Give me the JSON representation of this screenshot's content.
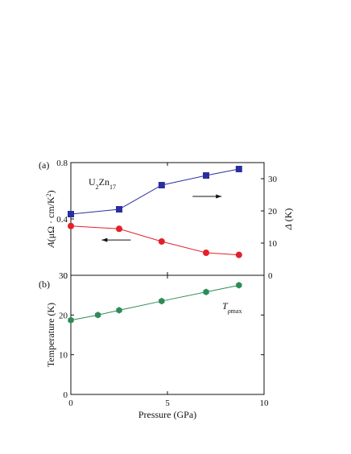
{
  "chart_data": [
    {
      "type": "line",
      "panel_label": "(a)",
      "xlim": [
        0,
        10
      ],
      "left_axis": {
        "label_parts": [
          "A",
          "(μΩ · cm/K",
          "2",
          ")"
        ],
        "ylim": [
          0,
          0.8
        ],
        "ticks": [
          0,
          0.4,
          0.8
        ],
        "tick_labels": [
          "0",
          "0.4",
          "0.8"
        ]
      },
      "right_axis": {
        "label_parts": [
          "Δ",
          " (K)"
        ],
        "ylim": [
          0,
          35
        ],
        "ticks": [
          0,
          10,
          20,
          30
        ],
        "tick_labels": [
          "0",
          "10",
          "20",
          "30"
        ]
      },
      "annotation": {
        "main": "U",
        "sub1": "2",
        "mid": "Zn",
        "sub2": "17"
      },
      "series": [
        {
          "axis": "right",
          "marker": "square",
          "color": "#2b2f9e",
          "x": [
            0,
            2.5,
            4.7,
            7.0,
            8.7
          ],
          "y": [
            19,
            20.5,
            28,
            31,
            33
          ]
        },
        {
          "axis": "left",
          "marker": "circle",
          "color": "#e3202a",
          "x": [
            0,
            2.5,
            4.7,
            7.0,
            8.7
          ],
          "y": [
            0.35,
            0.33,
            0.24,
            0.16,
            0.145
          ]
        }
      ],
      "arrows": [
        {
          "series_axis": "right",
          "direction": "right"
        },
        {
          "series_axis": "left",
          "direction": "left"
        }
      ]
    },
    {
      "type": "line",
      "panel_label": "(b)",
      "xlabel": "Pressure (GPa)",
      "ylabel": "Temperature (K)",
      "xlim": [
        0,
        10
      ],
      "ylim": [
        0,
        30
      ],
      "x_ticks": [
        0,
        5,
        10
      ],
      "x_tick_labels": [
        "0",
        "5",
        "10"
      ],
      "y_ticks": [
        0,
        10,
        20,
        30
      ],
      "y_tick_labels": [
        "0",
        "10",
        "20",
        "30"
      ],
      "annotation": {
        "main": "T",
        "sub": "ρmax"
      },
      "series": [
        {
          "marker": "circle",
          "color": "#2e8b57",
          "x": [
            0,
            1.4,
            2.5,
            4.7,
            7.0,
            8.7
          ],
          "y": [
            18.7,
            20,
            21.2,
            23.5,
            25.8,
            27.5
          ]
        }
      ]
    }
  ]
}
